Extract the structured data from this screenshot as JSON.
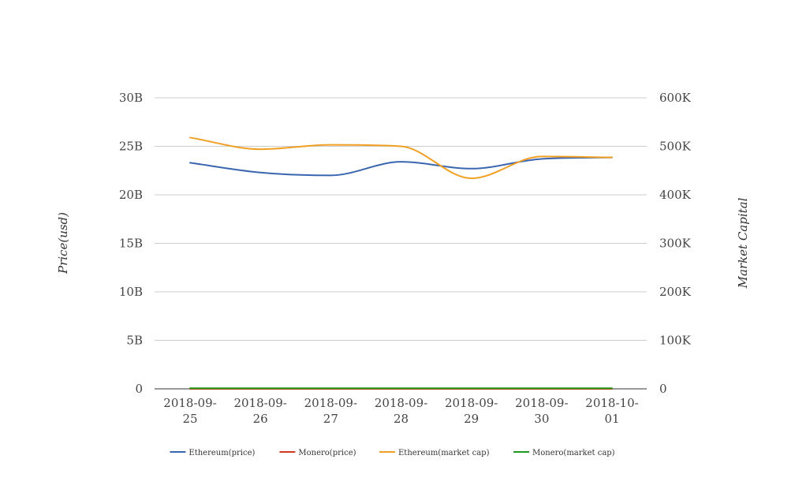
{
  "chart_data": {
    "type": "line",
    "categories": [
      "2018-09-25",
      "2018-09-26",
      "2018-09-27",
      "2018-09-28",
      "2018-09-29",
      "2018-09-30",
      "2018-10-01"
    ],
    "x_tick_labels": [
      [
        "2018-09-",
        "25"
      ],
      [
        "2018-09-",
        "26"
      ],
      [
        "2018-09-",
        "27"
      ],
      [
        "2018-09-",
        "28"
      ],
      [
        "2018-09-",
        "29"
      ],
      [
        "2018-09-",
        "30"
      ],
      [
        "2018-10-",
        "01"
      ]
    ],
    "ylabel": "Price(usd)",
    "y2label": "Market Capital",
    "ylim": [
      0,
      30000000000
    ],
    "y2lim": [
      0,
      600000
    ],
    "y_ticks": [
      0,
      5000000000,
      10000000000,
      15000000000,
      20000000000,
      25000000000,
      30000000000
    ],
    "y_tick_labels": [
      "0",
      "5B",
      "10B",
      "15B",
      "20B",
      "25B",
      "30B"
    ],
    "y2_ticks": [
      0,
      100000,
      200000,
      300000,
      400000,
      500000,
      600000
    ],
    "y2_tick_labels": [
      "0",
      "100K",
      "200K",
      "300K",
      "400K",
      "500K",
      "600K"
    ],
    "grid": true,
    "legend_position": "bottom",
    "series": [
      {
        "name": "Ethereum(price)",
        "axis": "left",
        "color": "#3a66b0",
        "values": [
          23300000000,
          22300000000,
          22000000000,
          23400000000,
          22700000000,
          23700000000,
          23850000000
        ]
      },
      {
        "name": "Monero(price)",
        "axis": "left",
        "color": "#d0391b",
        "values": [
          0,
          0,
          0,
          0,
          0,
          0,
          0
        ]
      },
      {
        "name": "Ethereum(market cap)",
        "axis": "right",
        "color": "#f0a024",
        "values": [
          518000,
          494000,
          503000,
          500000,
          434000,
          479000,
          477000
        ]
      },
      {
        "name": "Monero(market cap)",
        "axis": "right",
        "color": "#1f9a1f",
        "values": [
          1300,
          1300,
          1300,
          1300,
          1300,
          1300,
          1300
        ]
      }
    ]
  }
}
